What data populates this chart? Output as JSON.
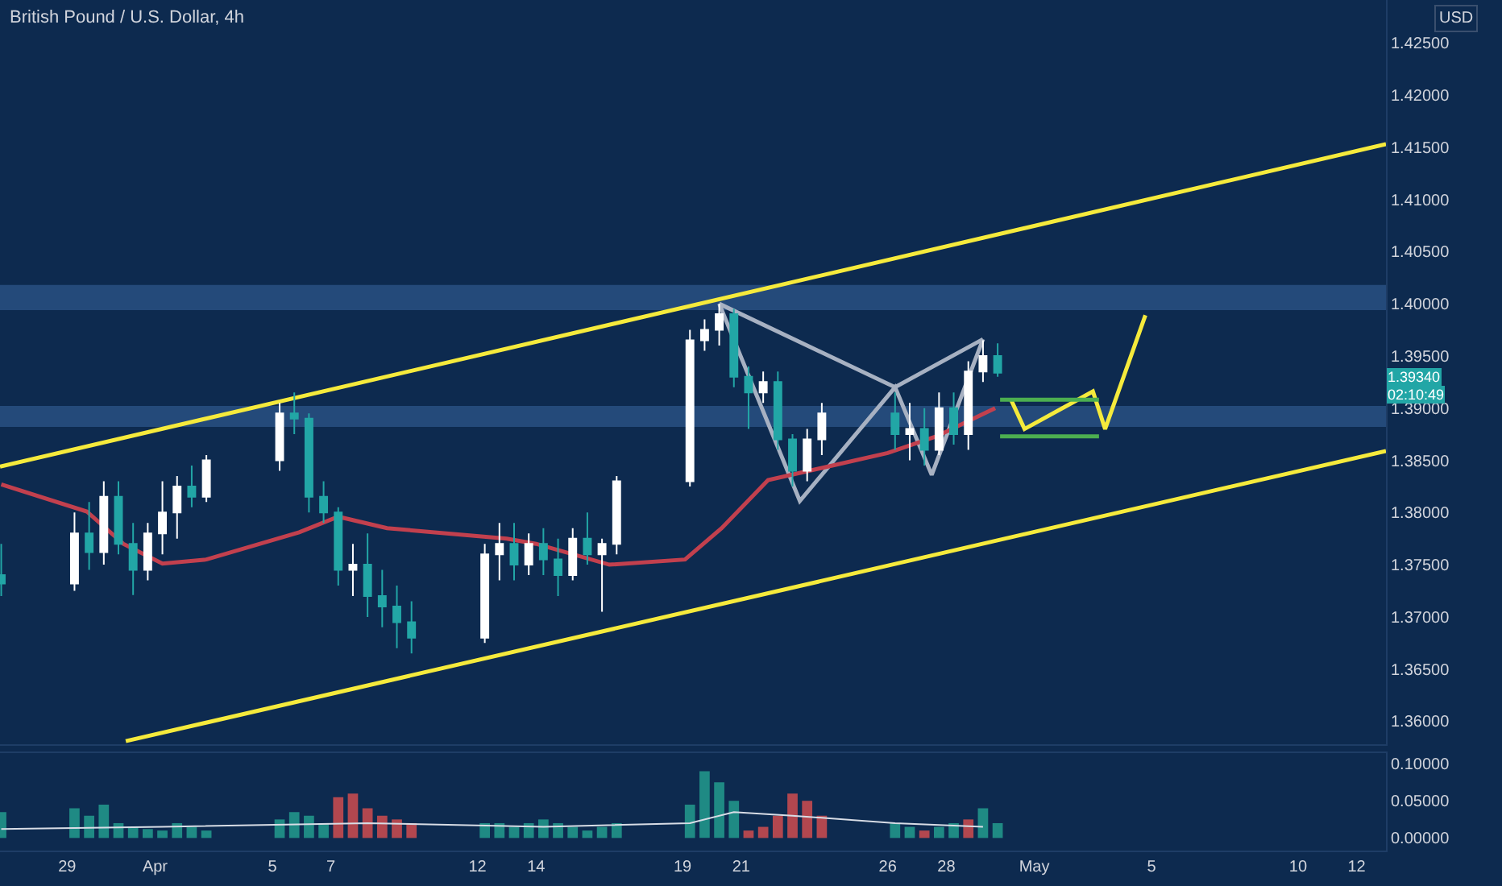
{
  "chart_data": [
    {
      "type": "candlestick",
      "title": "British Pound / U.S. Dollar, 4h",
      "annotations": [
        "USD",
        "1.39340",
        "02:10:49"
      ],
      "x": [
        "--03-26T18:00",
        "--03-29T06:00",
        "--03-29T18:00",
        "--03-30T06:00",
        "--03-30T18:00",
        "--03-31T06:00",
        "--03-31T18:00",
        "--04-01T06:00",
        "--04-01T18:00",
        "--04-02T06:00",
        "--04-02T18:00",
        "--04-05T06:00",
        "--04-05T18:00",
        "--04-06T06:00",
        "--04-06T18:00",
        "--04-07T06:00",
        "--04-07T18:00",
        "--04-08T06:00",
        "--04-08T18:00",
        "--04-09T06:00",
        "--04-09T18:00",
        "--04-12T06:00",
        "--04-12T18:00",
        "--04-13T06:00",
        "--04-13T18:00",
        "--04-14T06:00",
        "--04-14T18:00",
        "--04-15T06:00",
        "--04-15T18:00",
        "--04-16T06:00",
        "--04-16T18:00",
        "--04-19T06:00",
        "--04-19T18:00",
        "--04-20T06:00",
        "--04-20T18:00",
        "--04-21T06:00",
        "--04-21T18:00",
        "--04-22T06:00",
        "--04-22T18:00",
        "--04-23T06:00",
        "--04-23T18:00",
        "--04-26T06:00",
        "--04-26T18:00",
        "--04-27T06:00",
        "--04-27T18:00",
        "--04-28T06:00",
        "--04-28T18:00",
        "--04-29T06:00",
        "--04-29T18:00"
      ],
      "ohlc": [
        [
          1.374,
          1.377,
          1.372,
          1.3732
        ],
        [
          1.3732,
          1.38,
          1.3725,
          1.378
        ],
        [
          1.378,
          1.381,
          1.3745,
          1.3762
        ],
        [
          1.3762,
          1.383,
          1.375,
          1.3815
        ],
        [
          1.3815,
          1.383,
          1.376,
          1.377
        ],
        [
          1.377,
          1.379,
          1.3721,
          1.3745
        ],
        [
          1.3745,
          1.379,
          1.3735,
          1.378
        ],
        [
          1.378,
          1.383,
          1.376,
          1.38
        ],
        [
          1.38,
          1.3835,
          1.3775,
          1.3825
        ],
        [
          1.3825,
          1.3845,
          1.3805,
          1.3815
        ],
        [
          1.3815,
          1.3855,
          1.381,
          1.385
        ],
        [
          1.385,
          1.3905,
          1.384,
          1.3895
        ],
        [
          1.3895,
          1.3915,
          1.3875,
          1.389
        ],
        [
          1.389,
          1.3895,
          1.38,
          1.3815
        ],
        [
          1.3815,
          1.383,
          1.379,
          1.38
        ],
        [
          1.38,
          1.3805,
          1.373,
          1.3745
        ],
        [
          1.3745,
          1.377,
          1.372,
          1.375
        ],
        [
          1.375,
          1.378,
          1.37,
          1.372
        ],
        [
          1.372,
          1.3745,
          1.369,
          1.371
        ],
        [
          1.371,
          1.373,
          1.367,
          1.3695
        ],
        [
          1.3695,
          1.3715,
          1.3665,
          1.368
        ],
        [
          1.368,
          1.377,
          1.3675,
          1.376
        ],
        [
          1.376,
          1.379,
          1.3735,
          1.377
        ],
        [
          1.377,
          1.379,
          1.3735,
          1.375
        ],
        [
          1.375,
          1.378,
          1.374,
          1.377
        ],
        [
          1.377,
          1.3785,
          1.374,
          1.3755
        ],
        [
          1.3755,
          1.3775,
          1.372,
          1.374
        ],
        [
          1.374,
          1.3785,
          1.3735,
          1.3775
        ],
        [
          1.3775,
          1.38,
          1.375,
          1.376
        ],
        [
          1.376,
          1.3775,
          1.3705,
          1.377
        ],
        [
          1.377,
          1.3835,
          1.376,
          1.383
        ],
        [
          1.383,
          1.3975,
          1.3825,
          1.3965
        ],
        [
          1.3965,
          1.3985,
          1.3955,
          1.3975
        ],
        [
          1.3975,
          1.4,
          1.396,
          1.399
        ],
        [
          1.399,
          1.3995,
          1.392,
          1.393
        ],
        [
          1.393,
          1.394,
          1.388,
          1.3915
        ],
        [
          1.3915,
          1.3935,
          1.3905,
          1.3925
        ],
        [
          1.3925,
          1.3935,
          1.386,
          1.387
        ],
        [
          1.387,
          1.3875,
          1.3825,
          1.384
        ],
        [
          1.384,
          1.388,
          1.383,
          1.387
        ],
        [
          1.387,
          1.3905,
          1.3855,
          1.3895
        ],
        [
          1.3895,
          1.3915,
          1.386,
          1.3875
        ],
        [
          1.3875,
          1.3905,
          1.385,
          1.388
        ],
        [
          1.388,
          1.39,
          1.3845,
          1.386
        ],
        [
          1.386,
          1.3915,
          1.3855,
          1.39
        ],
        [
          1.39,
          1.3915,
          1.3865,
          1.3875
        ],
        [
          1.3875,
          1.3945,
          1.386,
          1.3935
        ],
        [
          1.3935,
          1.3965,
          1.3925,
          1.395
        ],
        [
          1.395,
          1.3962,
          1.393,
          1.3934
        ]
      ],
      "colors": [
        "#22a6a6",
        "#ffffff",
        "#22a6a6",
        "#ffffff",
        "#22a6a6",
        "#22a6a6",
        "#ffffff",
        "#ffffff",
        "#ffffff",
        "#22a6a6",
        "#ffffff",
        "#ffffff",
        "#22a6a6",
        "#22a6a6",
        "#22a6a6",
        "#22a6a6",
        "#ffffff",
        "#22a6a6",
        "#22a6a6",
        "#22a6a6",
        "#22a6a6",
        "#ffffff",
        "#ffffff",
        "#22a6a6",
        "#ffffff",
        "#22a6a6",
        "#22a6a6",
        "#ffffff",
        "#22a6a6",
        "#ffffff",
        "#ffffff",
        "#ffffff",
        "#ffffff",
        "#ffffff",
        "#22a6a6",
        "#22a6a6",
        "#ffffff",
        "#22a6a6",
        "#22a6a6",
        "#ffffff",
        "#ffffff",
        "#22a6a6",
        "#ffffff",
        "#22a6a6",
        "#ffffff",
        "#22a6a6",
        "#ffffff",
        "#ffffff",
        "#22a6a6"
      ],
      "series": [
        {
          "type": "line",
          "color": "#a7b1c2",
          "x": [
            "--04-20T06:00",
            "--04-23T00:00",
            "--04-26T06:00",
            "--04-27T12:00",
            "--04-29T06:00"
          ],
          "values": [
            1.4,
            1.3811,
            1.392,
            1.3836,
            1.3966
          ]
        },
        {
          "type": "line",
          "color": "#a7b1c2",
          "x": [
            "--04-20T06:00",
            "--04-26T06:00",
            "--04-29T06:00"
          ],
          "values": [
            1.4,
            1.392,
            1.3966
          ]
        },
        {
          "type": "line",
          "color": "#c2404e",
          "x": [
            "--03-26T18:00",
            "--03-29T16:00",
            "--03-30T22:00",
            "--04-01T06:00",
            "--04-02T18:00",
            "--04-05T22:00",
            "--04-07T06:00",
            "--04-08T22:00",
            "--04-13T00:00",
            "--04-14T00:00",
            "--04-16T12:00",
            "--04-19T02:00",
            "--04-20T08:00",
            "--04-21T22:00",
            "--04-26T00:00",
            "--04-27T16:00",
            "--04-29T16:00"
          ],
          "values": [
            1.3827,
            1.3801,
            1.377,
            1.3751,
            1.3755,
            1.3781,
            1.3796,
            1.3785,
            1.3775,
            1.377,
            1.375,
            1.3755,
            1.3785,
            1.3831,
            1.3857,
            1.3873,
            1.39
          ]
        },
        {
          "type": "line",
          "color": "#f5ea3c",
          "x": [
            "--03-26T17:00",
            "--05-13T00:00"
          ],
          "values": [
            1.3844,
            1.4153
          ]
        },
        {
          "type": "line",
          "color": "#f5ea3c",
          "x": [
            "--03-31T00:00",
            "--05-13T00:00"
          ],
          "values": [
            1.3581,
            1.3859
          ]
        },
        {
          "type": "line",
          "color": "#f5ea3c",
          "x": [
            "--04-30T05:00",
            "--04-30T16:00",
            "--05-03T00:00",
            "--05-03T10:00",
            "--05-04T19:00"
          ],
          "values": [
            1.3908,
            1.388,
            1.3916,
            1.388,
            1.3989
          ]
        },
        {
          "type": "line",
          "color": "#4caf50",
          "x": [
            "--04-29T20:00",
            "--05-03T05:00"
          ],
          "values": [
            1.3908,
            1.3908
          ]
        },
        {
          "type": "line",
          "color": "#4caf50",
          "x": [
            "--04-29T20:00",
            "--05-03T05:00"
          ],
          "values": [
            1.3873,
            1.3873
          ]
        }
      ],
      "bands": [
        {
          "axis": "y",
          "from": 1.3994,
          "to": 1.4018,
          "color": "#2b5285"
        },
        {
          "axis": "y",
          "from": 1.3882,
          "to": 1.3902,
          "color": "#2b5285"
        }
      ],
      "xlim": [
        "--03-26T17:00",
        "--05-13T00:00"
      ],
      "ylim": [
        1.3578,
        1.4291
      ],
      "yticks": [
        {
          "value": 1.36,
          "label": "1.36000"
        },
        {
          "value": 1.365,
          "label": "1.36500"
        },
        {
          "value": 1.37,
          "label": "1.37000"
        },
        {
          "value": 1.375,
          "label": "1.37500"
        },
        {
          "value": 1.38,
          "label": "1.38000"
        },
        {
          "value": 1.385,
          "label": "1.38500"
        },
        {
          "value": 1.39,
          "label": "1.39000"
        },
        {
          "value": 1.395,
          "label": "1.39500"
        },
        {
          "value": 1.4,
          "label": "1.40000"
        },
        {
          "value": 1.405,
          "label": "1.40500"
        },
        {
          "value": 1.41,
          "label": "1.41000"
        },
        {
          "value": 1.415,
          "label": "1.41500"
        },
        {
          "value": 1.42,
          "label": "1.42000"
        },
        {
          "value": 1.425,
          "label": "1.42500"
        }
      ],
      "tick_labels": "y",
      "grid": false
    },
    {
      "type": "bar",
      "x": [
        "--03-26T18:00",
        "--03-29T06:00",
        "--03-29T18:00",
        "--03-30T06:00",
        "--03-30T18:00",
        "--03-31T06:00",
        "--03-31T18:00",
        "--04-01T06:00",
        "--04-01T18:00",
        "--04-02T06:00",
        "--04-02T18:00",
        "--04-05T06:00",
        "--04-05T18:00",
        "--04-06T06:00",
        "--04-06T18:00",
        "--04-07T06:00",
        "--04-07T18:00",
        "--04-08T06:00",
        "--04-08T18:00",
        "--04-09T06:00",
        "--04-09T18:00",
        "--04-12T06:00",
        "--04-12T18:00",
        "--04-13T06:00",
        "--04-13T18:00",
        "--04-14T06:00",
        "--04-14T18:00",
        "--04-15T06:00",
        "--04-15T18:00",
        "--04-16T06:00",
        "--04-16T18:00",
        "--04-19T06:00",
        "--04-19T18:00",
        "--04-20T06:00",
        "--04-20T18:00",
        "--04-21T06:00",
        "--04-21T18:00",
        "--04-22T06:00",
        "--04-22T18:00",
        "--04-23T06:00",
        "--04-23T18:00",
        "--04-26T06:00",
        "--04-26T18:00",
        "--04-27T06:00",
        "--04-27T18:00",
        "--04-28T06:00",
        "--04-28T18:00",
        "--04-29T06:00",
        "--04-29T18:00"
      ],
      "values": [
        0.035,
        0.04,
        0.03,
        0.045,
        0.02,
        0.015,
        0.012,
        0.01,
        0.02,
        0.015,
        0.01,
        0.025,
        0.035,
        0.03,
        0.02,
        0.055,
        0.06,
        0.04,
        0.03,
        0.025,
        0.02,
        0.02,
        0.02,
        0.015,
        0.02,
        0.025,
        0.02,
        0.015,
        0.01,
        0.015,
        0.02,
        0.045,
        0.09,
        0.075,
        0.05,
        0.01,
        0.015,
        0.03,
        0.06,
        0.05,
        0.03,
        0.02,
        0.015,
        0.01,
        0.015,
        0.02,
        0.025,
        0.04,
        0.02
      ],
      "colors": [
        "#1f8a84",
        "#1f8a84",
        "#1f8a84",
        "#1f8a84",
        "#1f8a84",
        "#1f8a84",
        "#1f8a84",
        "#1f8a84",
        "#1f8a84",
        "#1f8a84",
        "#1f8a84",
        "#1f8a84",
        "#1f8a84",
        "#1f8a84",
        "#1f8a84",
        "#b2474f",
        "#b2474f",
        "#b2474f",
        "#b2474f",
        "#b2474f",
        "#b2474f",
        "#1f8a84",
        "#1f8a84",
        "#1f8a84",
        "#1f8a84",
        "#1f8a84",
        "#1f8a84",
        "#1f8a84",
        "#1f8a84",
        "#1f8a84",
        "#1f8a84",
        "#1f8a84",
        "#1f8a84",
        "#1f8a84",
        "#1f8a84",
        "#b2474f",
        "#b2474f",
        "#b2474f",
        "#b2474f",
        "#b2474f",
        "#b2474f",
        "#1f8a84",
        "#1f8a84",
        "#b2474f",
        "#1f8a84",
        "#1f8a84",
        "#b2474f",
        "#1f8a84",
        "#1f8a84"
      ],
      "series": [
        {
          "type": "line",
          "color": "#d8dde6",
          "x": [
            "--03-26T18:00",
            "--04-01T06:00",
            "--04-08T06:00",
            "--04-14T06:00",
            "--04-19T06:00",
            "--04-20T18:00",
            "--04-22T18:00",
            "--04-26T06:00",
            "--04-29T06:00"
          ],
          "values": [
            0.012,
            0.015,
            0.02,
            0.015,
            0.02,
            0.035,
            0.03,
            0.02,
            0.015
          ]
        }
      ],
      "xlim": [
        "--03-26T17:00",
        "--05-13T00:00"
      ],
      "xticks": [
        {
          "value": "--03-29",
          "label": "29"
        },
        {
          "value": "--04-01",
          "label": "Apr"
        },
        {
          "value": "--04-05",
          "label": "5"
        },
        {
          "value": "--04-07",
          "label": "7"
        },
        {
          "value": "--04-12",
          "label": "12"
        },
        {
          "value": "--04-14",
          "label": "14"
        },
        {
          "value": "--04-19",
          "label": "19"
        },
        {
          "value": "--04-21",
          "label": "21"
        },
        {
          "value": "--04-26",
          "label": "26"
        },
        {
          "value": "--04-28",
          "label": "28"
        },
        {
          "value": "--05-01",
          "label": "May"
        },
        {
          "value": "--05-05",
          "label": "5"
        },
        {
          "value": "--05-10",
          "label": "10"
        },
        {
          "value": "--05-12",
          "label": "12"
        }
      ],
      "ylim": [
        -0.017,
        0.115
      ],
      "yticks": [
        {
          "value": 0,
          "label": "0.00000"
        },
        {
          "value": 0.05,
          "label": "0.05000"
        },
        {
          "value": 0.1,
          "label": "0.10000"
        }
      ],
      "grid": false
    }
  ]
}
